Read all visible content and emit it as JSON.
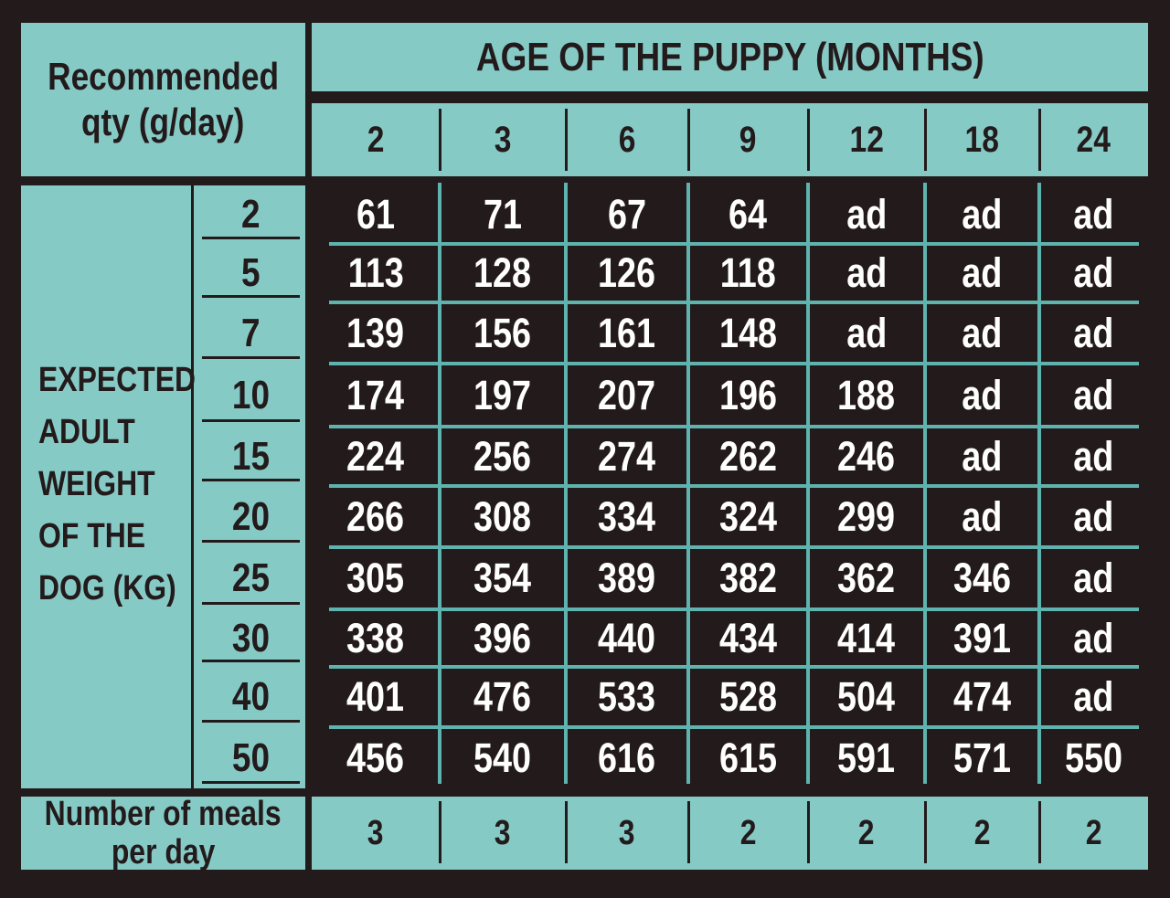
{
  "header": {
    "corner_label_line1": "Recommended",
    "corner_label_line2": "qty (g/day)",
    "age_title": "AGE OF THE PUPPY (MONTHS)"
  },
  "age_months": [
    "2",
    "3",
    "6",
    "9",
    "12",
    "18",
    "24"
  ],
  "weight_label_lines": [
    "EXPECTED",
    "ADULT",
    "WEIGHT",
    "OF THE",
    "DOG (KG)"
  ],
  "weights_kg": [
    "2",
    "5",
    "7",
    "10",
    "15",
    "20",
    "25",
    "30",
    "40",
    "50"
  ],
  "rows": [
    [
      "61",
      "71",
      "67",
      "64",
      "ad",
      "ad",
      "ad"
    ],
    [
      "113",
      "128",
      "126",
      "118",
      "ad",
      "ad",
      "ad"
    ],
    [
      "139",
      "156",
      "161",
      "148",
      "ad",
      "ad",
      "ad"
    ],
    [
      "174",
      "197",
      "207",
      "196",
      "188",
      "ad",
      "ad"
    ],
    [
      "224",
      "256",
      "274",
      "262",
      "246",
      "ad",
      "ad"
    ],
    [
      "266",
      "308",
      "334",
      "324",
      "299",
      "ad",
      "ad"
    ],
    [
      "305",
      "354",
      "389",
      "382",
      "362",
      "346",
      "ad"
    ],
    [
      "338",
      "396",
      "440",
      "434",
      "414",
      "391",
      "ad"
    ],
    [
      "401",
      "476",
      "533",
      "528",
      "504",
      "474",
      "ad"
    ],
    [
      "456",
      "540",
      "616",
      "615",
      "591",
      "571",
      "550"
    ]
  ],
  "meals": {
    "label_line1": "Number of meals",
    "label_line2": "per day",
    "values": [
      "3",
      "3",
      "3",
      "2",
      "2",
      "2",
      "2"
    ]
  },
  "colors": {
    "teal": "#86cac6",
    "dark": "#231a1b",
    "grid_line": "#5fb3ae"
  }
}
